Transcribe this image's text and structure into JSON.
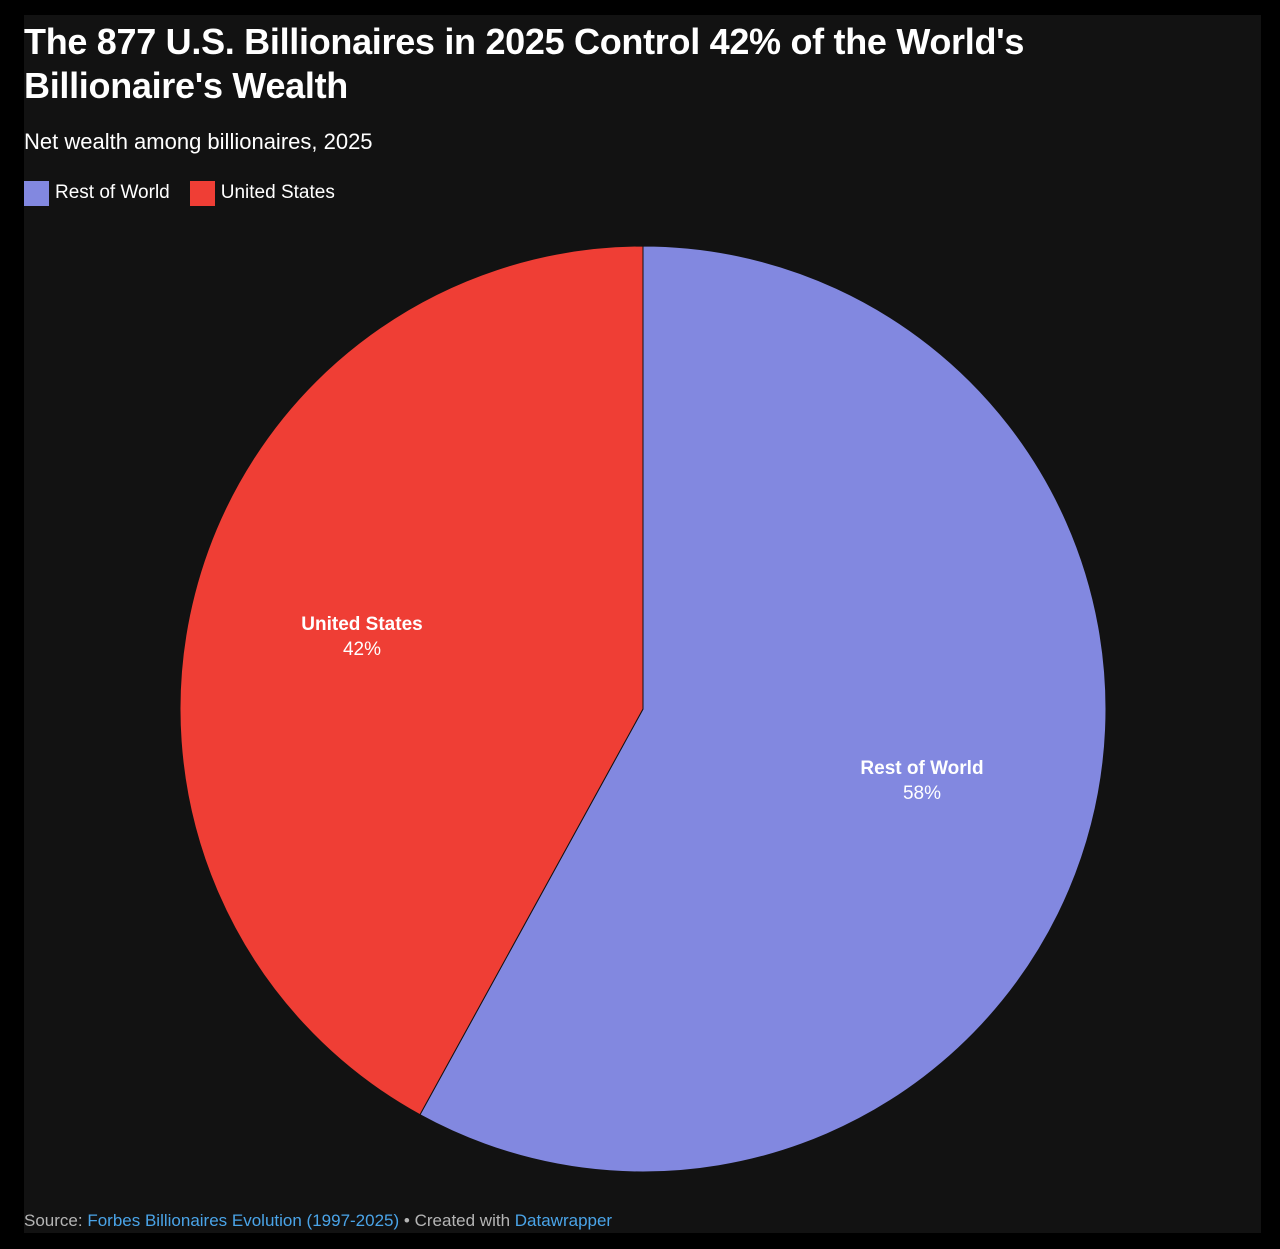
{
  "header": {
    "title": "The 877 U.S. Billionaires in 2025 Control 42% of the World's Billionaire's Wealth",
    "subtitle": "Net wealth among billionaires, 2025"
  },
  "legend": [
    {
      "label": "Rest of World",
      "color": "#8288e0"
    },
    {
      "label": "United States",
      "color": "#ef3e35"
    }
  ],
  "slices": [
    {
      "name": "Rest of World",
      "pct_label": "58%",
      "color": "#8288e0"
    },
    {
      "name": "United States",
      "pct_label": "42%",
      "color": "#ef3e35"
    }
  ],
  "footer": {
    "source_prefix": "Source:",
    "source_link": "Forbes Billionaires Evolution (1997-2025)",
    "separator": "•",
    "created_prefix": "Created with",
    "created_link": "Datawrapper"
  },
  "colors": {
    "background": "#121212",
    "outer": "#000000",
    "rest_of_world": "#8288e0",
    "united_states": "#ef3e35",
    "link": "#4aa4e8"
  },
  "chart_data": {
    "type": "pie",
    "title": "The 877 U.S. Billionaires in 2025 Control 42% of the World's Billionaire's Wealth",
    "subtitle": "Net wealth among billionaires, 2025",
    "categories": [
      "Rest of World",
      "United States"
    ],
    "values": [
      58,
      42
    ],
    "unit": "%",
    "colors": [
      "#8288e0",
      "#ef3e35"
    ],
    "legend_position": "top-left",
    "start_angle_deg": 0,
    "direction": "clockwise",
    "source": "Forbes Billionaires Evolution (1997-2025)"
  }
}
